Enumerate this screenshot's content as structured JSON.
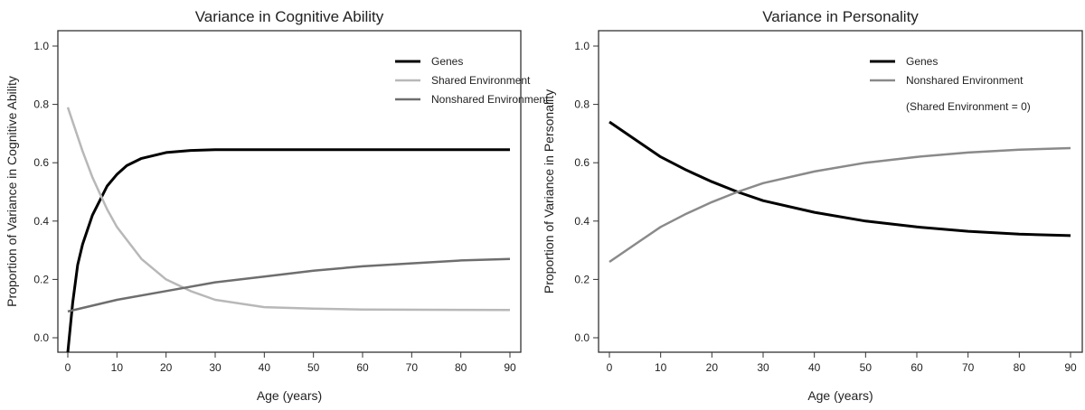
{
  "chart_data": [
    {
      "type": "line",
      "title": "Variance in Cognitive Ability",
      "xlabel": "Age (years)",
      "ylabel": "Proportion of Variance in Cognitive Ability",
      "xlim": [
        0,
        90
      ],
      "ylim": [
        -0.05,
        1.05
      ],
      "xticks": [
        0,
        10,
        20,
        30,
        40,
        50,
        60,
        70,
        80,
        90
      ],
      "yticks": [
        "0.0",
        "0.2",
        "0.4",
        "0.6",
        "0.8",
        "1.0"
      ],
      "grid": false,
      "legend_position": "top-right",
      "legend_note": "",
      "series": [
        {
          "name": "Genes",
          "color": "#000000",
          "width": 3,
          "x": [
            0,
            1,
            2,
            3,
            5,
            8,
            10,
            12,
            15,
            20,
            25,
            30,
            40,
            60,
            90
          ],
          "y": [
            -0.05,
            0.12,
            0.25,
            0.32,
            0.42,
            0.52,
            0.56,
            0.59,
            0.615,
            0.635,
            0.642,
            0.645,
            0.645,
            0.645,
            0.645
          ]
        },
        {
          "name": "Shared Environment",
          "color": "#b8b8b8",
          "width": 2.5,
          "x": [
            0,
            3,
            5,
            8,
            10,
            15,
            20,
            25,
            30,
            40,
            50,
            60,
            90
          ],
          "y": [
            0.79,
            0.64,
            0.55,
            0.44,
            0.38,
            0.27,
            0.2,
            0.16,
            0.13,
            0.105,
            0.1,
            0.097,
            0.095
          ]
        },
        {
          "name": "Nonshared Environment",
          "color": "#6e6e6e",
          "width": 2.5,
          "x": [
            0,
            10,
            20,
            30,
            40,
            50,
            60,
            70,
            80,
            90
          ],
          "y": [
            0.09,
            0.13,
            0.16,
            0.19,
            0.21,
            0.23,
            0.245,
            0.255,
            0.265,
            0.27
          ]
        }
      ]
    },
    {
      "type": "line",
      "title": "Variance in Personality",
      "xlabel": "Age (years)",
      "ylabel": "Proportion of Variance in Personality",
      "xlim": [
        0,
        90
      ],
      "ylim": [
        -0.05,
        1.05
      ],
      "xticks": [
        0,
        10,
        20,
        30,
        40,
        50,
        60,
        70,
        80,
        90
      ],
      "yticks": [
        "0.0",
        "0.2",
        "0.4",
        "0.6",
        "0.8",
        "1.0"
      ],
      "grid": false,
      "legend_position": "top-right",
      "legend_note": "(Shared Environment = 0)",
      "series": [
        {
          "name": "Genes",
          "color": "#000000",
          "width": 3,
          "x": [
            0,
            5,
            10,
            15,
            20,
            25,
            30,
            40,
            50,
            60,
            70,
            80,
            90
          ],
          "y": [
            0.74,
            0.68,
            0.62,
            0.575,
            0.535,
            0.5,
            0.47,
            0.43,
            0.4,
            0.38,
            0.365,
            0.355,
            0.35
          ]
        },
        {
          "name": "Nonshared Environment",
          "color": "#8a8a8a",
          "width": 2.5,
          "x": [
            0,
            5,
            10,
            15,
            20,
            25,
            30,
            40,
            50,
            60,
            70,
            80,
            90
          ],
          "y": [
            0.26,
            0.32,
            0.38,
            0.425,
            0.465,
            0.5,
            0.53,
            0.57,
            0.6,
            0.62,
            0.635,
            0.645,
            0.65
          ]
        }
      ]
    }
  ]
}
